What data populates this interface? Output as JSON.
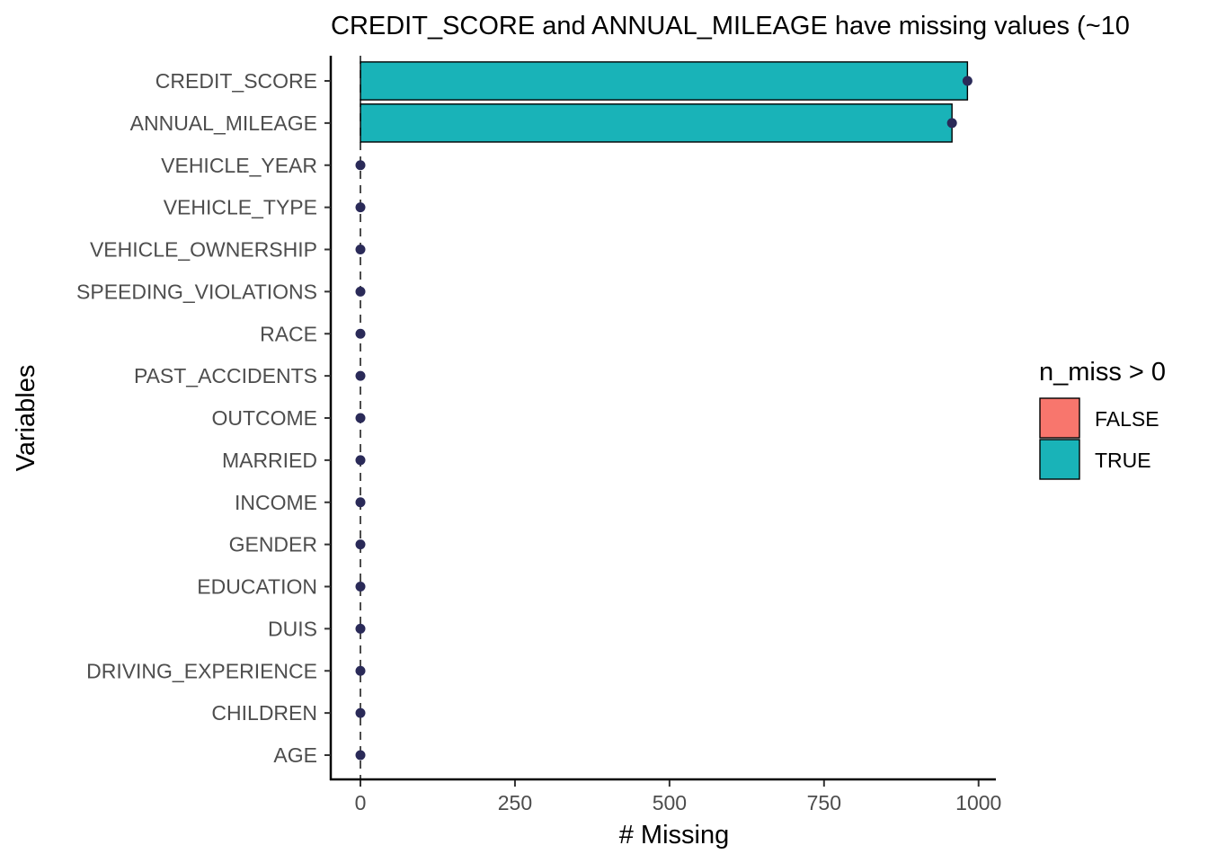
{
  "chart_data": {
    "type": "bar",
    "orientation": "horizontal",
    "title": "CREDIT_SCORE and ANNUAL_MILEAGE have missing values (~10",
    "xlabel": "# Missing",
    "ylabel": "Variables",
    "xlim": [
      -48,
      1028
    ],
    "xticks": [
      0,
      250,
      500,
      750,
      1000
    ],
    "categories": [
      "CREDIT_SCORE",
      "ANNUAL_MILEAGE",
      "VEHICLE_YEAR",
      "VEHICLE_TYPE",
      "VEHICLE_OWNERSHIP",
      "SPEEDING_VIOLATIONS",
      "RACE",
      "PAST_ACCIDENTS",
      "OUTCOME",
      "MARRIED",
      "INCOME",
      "GENDER",
      "EDUCATION",
      "DUIS",
      "DRIVING_EXPERIENCE",
      "CHILDREN",
      "AGE"
    ],
    "values": [
      982,
      957,
      0,
      0,
      0,
      0,
      0,
      0,
      0,
      0,
      0,
      0,
      0,
      0,
      0,
      0,
      0
    ],
    "n_miss_gt_0": [
      true,
      true,
      false,
      false,
      false,
      false,
      false,
      false,
      false,
      false,
      false,
      false,
      false,
      false,
      false,
      false,
      false
    ],
    "reference_line": {
      "x": 0,
      "style": "dashed"
    },
    "legend": {
      "title": "n_miss > 0",
      "placement": "right",
      "entries": [
        {
          "label": "FALSE",
          "color": "#F8766D"
        },
        {
          "label": "TRUE",
          "color": "#19B3B8"
        }
      ]
    },
    "colors": {
      "false": "#F8766D",
      "true": "#19B3B8",
      "point": "#2A2A58",
      "axis": "#000000"
    },
    "grid": false
  }
}
